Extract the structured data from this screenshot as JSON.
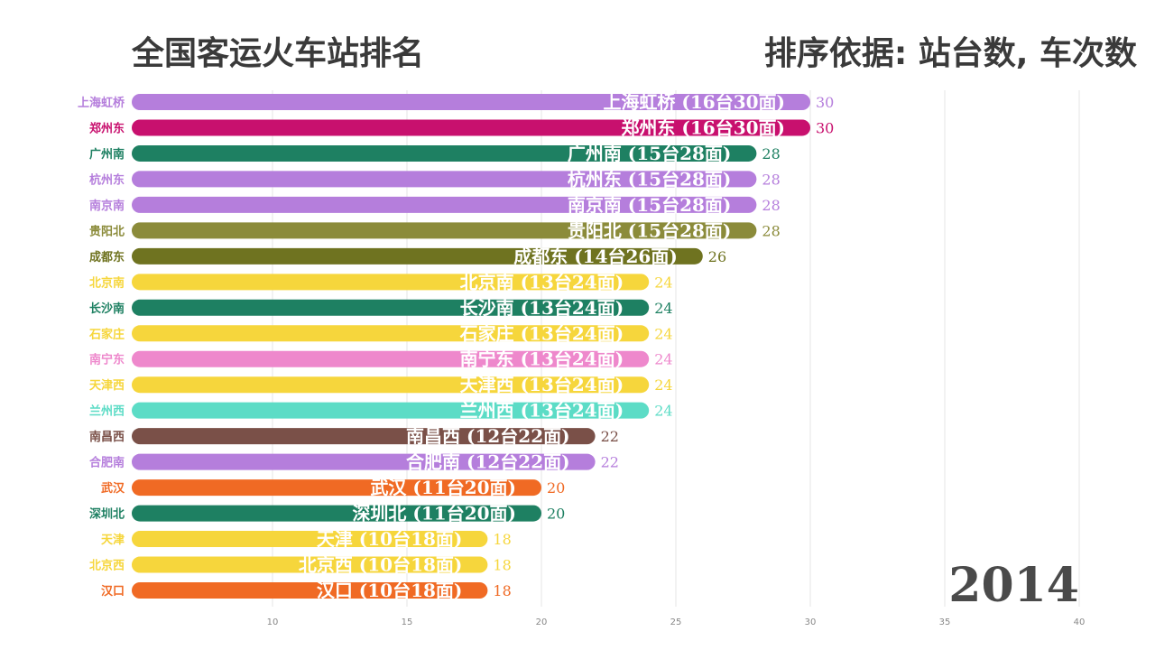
{
  "header": {
    "title": "全国客运火车站排名",
    "sort_basis": "排序依据: 站台数, 车次数"
  },
  "year": "2014",
  "chart_data": {
    "type": "bar",
    "orientation": "horizontal",
    "title": "全国客运火车站排名",
    "x_ticks": [
      10,
      15,
      20,
      25,
      30,
      35,
      40
    ],
    "xlim": [
      5,
      42
    ],
    "grid": true,
    "series": [
      {
        "category": "上海虹桥",
        "label": "上海虹桥 (16台30面)",
        "value": 30,
        "color": "#b57edc"
      },
      {
        "category": "郑州东",
        "label": "郑州东 (16台30面)",
        "value": 30,
        "color": "#c8106e"
      },
      {
        "category": "广州南",
        "label": "广州南 (15台28面)",
        "value": 28,
        "color": "#1e8062"
      },
      {
        "category": "杭州东",
        "label": "杭州东 (15台28面)",
        "value": 28,
        "color": "#b57edc"
      },
      {
        "category": "南京南",
        "label": "南京南 (15台28面)",
        "value": 28,
        "color": "#b57edc"
      },
      {
        "category": "贵阳北",
        "label": "贵阳北 (15台28面)",
        "value": 28,
        "color": "#8b8b3a"
      },
      {
        "category": "成都东",
        "label": "成都东 (14台26面)",
        "value": 26,
        "color": "#6f7320"
      },
      {
        "category": "北京南",
        "label": "北京南 (13台24面)",
        "value": 24,
        "color": "#f6d63c"
      },
      {
        "category": "长沙南",
        "label": "长沙南 (13台24面)",
        "value": 24,
        "color": "#1e8062"
      },
      {
        "category": "石家庄",
        "label": "石家庄 (13台24面)",
        "value": 24,
        "color": "#f6d63c"
      },
      {
        "category": "南宁东",
        "label": "南宁东 (13台24面)",
        "value": 24,
        "color": "#ee88cc"
      },
      {
        "category": "天津西",
        "label": "天津西 (13台24面)",
        "value": 24,
        "color": "#f6d63c"
      },
      {
        "category": "兰州西",
        "label": "兰州西 (13台24面)",
        "value": 24,
        "color": "#5cdcc6"
      },
      {
        "category": "南昌西",
        "label": "南昌西 (12台22面)",
        "value": 22,
        "color": "#7a5048"
      },
      {
        "category": "合肥南",
        "label": "合肥南 (12台22面)",
        "value": 22,
        "color": "#b57edc"
      },
      {
        "category": "武汉",
        "label": "武汉 (11台20面)",
        "value": 20,
        "color": "#f06a24"
      },
      {
        "category": "深圳北",
        "label": "深圳北 (11台20面)",
        "value": 20,
        "color": "#1e8062"
      },
      {
        "category": "天津",
        "label": "天津 (10台18面)",
        "value": 18,
        "color": "#f6d63c"
      },
      {
        "category": "北京西",
        "label": "北京西 (10台18面)",
        "value": 18,
        "color": "#f6d63c"
      },
      {
        "category": "汉口",
        "label": "汉口 (10台18面)",
        "value": 18,
        "color": "#f06a24"
      }
    ]
  }
}
